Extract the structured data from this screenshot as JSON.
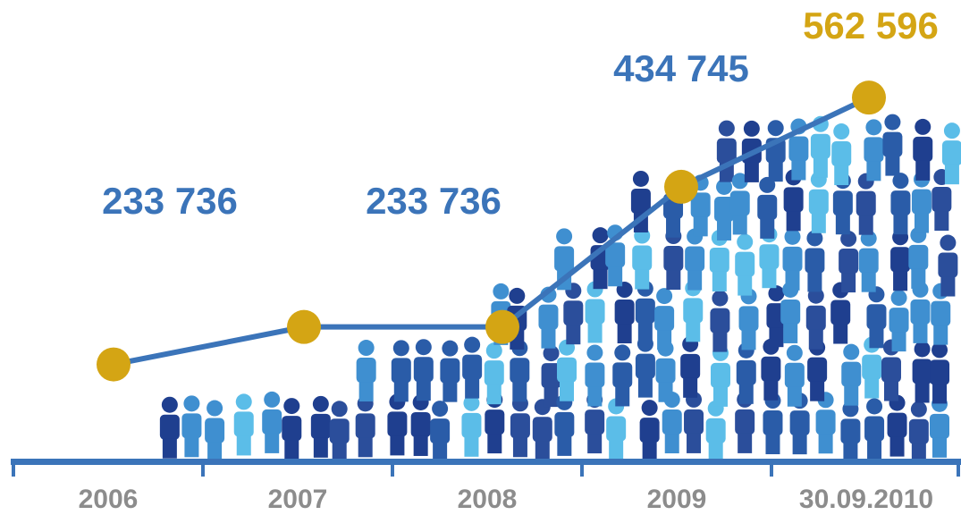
{
  "chart_data": {
    "type": "line",
    "categories": [
      "2006",
      "2007",
      "2008",
      "2009",
      "30.09.2010"
    ],
    "values": [
      180000,
      233736,
      233736,
      434745,
      562596
    ],
    "value_labels": [
      null,
      "233 736",
      "233 736",
      "434 745",
      "562 596"
    ],
    "ylim": [
      100000,
      600000
    ],
    "color": "#3b74b9",
    "point_color": "#d4a514",
    "label_color": "#3b74b9",
    "last_label_color": "#d4a514",
    "axis_label_color": "#8c8c8c"
  }
}
